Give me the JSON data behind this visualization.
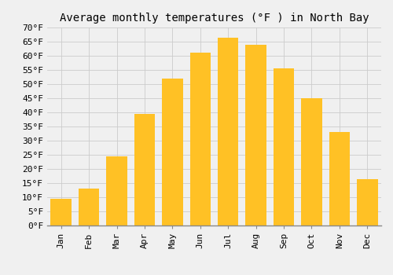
{
  "title": "Average monthly temperatures (°F ) in North Bay",
  "months": [
    "Jan",
    "Feb",
    "Mar",
    "Apr",
    "May",
    "Jun",
    "Jul",
    "Aug",
    "Sep",
    "Oct",
    "Nov",
    "Dec"
  ],
  "values": [
    9.5,
    13.0,
    24.5,
    39.5,
    52.0,
    61.0,
    66.5,
    64.0,
    55.5,
    45.0,
    33.0,
    16.5
  ],
  "bar_color": "#FFC125",
  "ylim": [
    0,
    70
  ],
  "yticks": [
    0,
    5,
    10,
    15,
    20,
    25,
    30,
    35,
    40,
    45,
    50,
    55,
    60,
    65,
    70
  ],
  "ytick_labels": [
    "0°F",
    "5°F",
    "10°F",
    "15°F",
    "20°F",
    "25°F",
    "30°F",
    "35°F",
    "40°F",
    "45°F",
    "50°F",
    "55°F",
    "60°F",
    "65°F",
    "70°F"
  ],
  "background_color": "#f0f0f0",
  "grid_color": "#cccccc",
  "title_fontsize": 10,
  "tick_fontsize": 8,
  "bar_width": 0.75
}
